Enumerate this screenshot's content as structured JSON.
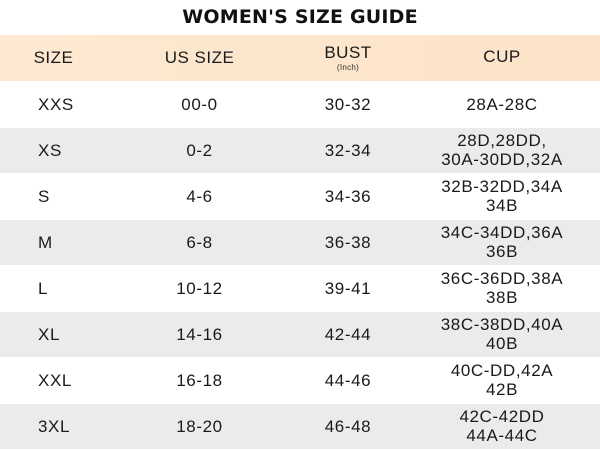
{
  "title": "WOMEN'S SIZE GUIDE",
  "colors": {
    "header_bg": "#fde9d2",
    "row_alt_bg": "#ebebeb",
    "row_bg": "#ffffff",
    "text": "#1a1a1a"
  },
  "headers": {
    "size": "SIZE",
    "us_size": "US SIZE",
    "bust": "BUST",
    "bust_unit": "(Inch)",
    "cup": "CUP"
  },
  "rows": [
    {
      "size": "XXS",
      "us_size": "00-0",
      "bust": "30-32",
      "cup_line1": "28A-28C",
      "cup_line2": ""
    },
    {
      "size": "XS",
      "us_size": "0-2",
      "bust": "32-34",
      "cup_line1": "28D,28DD,",
      "cup_line2": "30A-30DD,32A"
    },
    {
      "size": "S",
      "us_size": "4-6",
      "bust": "34-36",
      "cup_line1": "32B-32DD,34A",
      "cup_line2": "34B"
    },
    {
      "size": "M",
      "us_size": "6-8",
      "bust": "36-38",
      "cup_line1": "34C-34DD,36A",
      "cup_line2": "36B"
    },
    {
      "size": "L",
      "us_size": "10-12",
      "bust": "39-41",
      "cup_line1": "36C-36DD,38A",
      "cup_line2": "38B"
    },
    {
      "size": "XL",
      "us_size": "14-16",
      "bust": "42-44",
      "cup_line1": "38C-38DD,40A",
      "cup_line2": "40B"
    },
    {
      "size": "XXL",
      "us_size": "16-18",
      "bust": "44-46",
      "cup_line1": "40C-DD,42A",
      "cup_line2": "42B"
    },
    {
      "size": "3XL",
      "us_size": "18-20",
      "bust": "46-48",
      "cup_line1": "42C-42DD",
      "cup_line2": "44A-44C"
    }
  ]
}
